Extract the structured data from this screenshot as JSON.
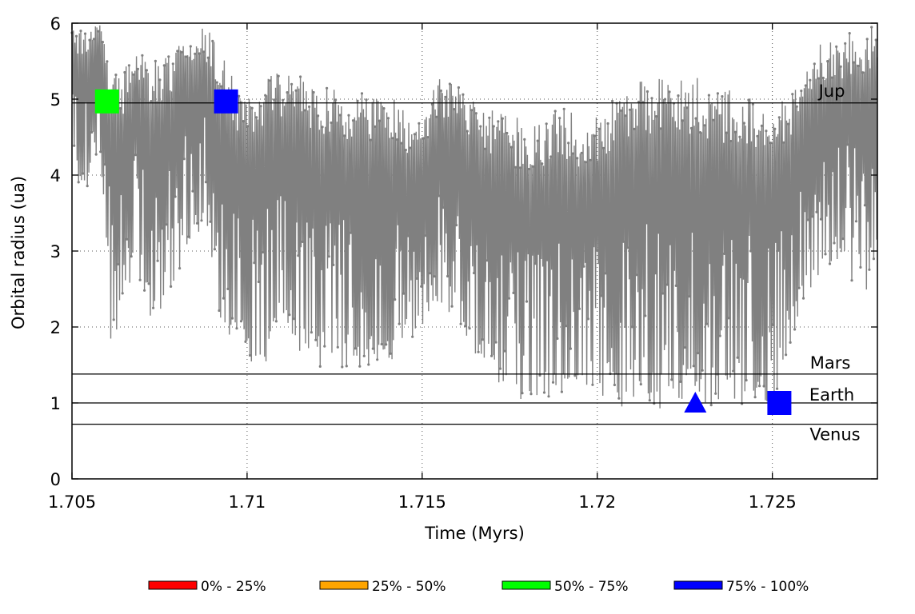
{
  "chart_data": {
    "type": "line",
    "title": "",
    "xlabel": "Time (Myrs)",
    "ylabel": "Orbital radius (ua)",
    "xlim": [
      1.705,
      1.728
    ],
    "ylim": [
      0,
      6
    ],
    "x_ticks": [
      {
        "value": 1.705,
        "label": "1.705"
      },
      {
        "value": 1.71,
        "label": "1.71"
      },
      {
        "value": 1.715,
        "label": "1.715"
      },
      {
        "value": 1.72,
        "label": "1.72"
      },
      {
        "value": 1.725,
        "label": "1.725"
      }
    ],
    "y_ticks": [
      {
        "value": 0,
        "label": "0"
      },
      {
        "value": 1,
        "label": "1"
      },
      {
        "value": 2,
        "label": "2"
      },
      {
        "value": 3,
        "label": "3"
      },
      {
        "value": 4,
        "label": "4"
      },
      {
        "value": 5,
        "label": "5"
      },
      {
        "value": 6,
        "label": "6"
      }
    ],
    "grid": true,
    "line_color": "#808080",
    "reference_lines": [
      {
        "label": "Jup",
        "y": 4.95
      },
      {
        "label": "Mars",
        "y": 1.38
      },
      {
        "label": "Earth",
        "y": 1.0
      },
      {
        "label": "Venus",
        "y": 0.72
      }
    ],
    "envelope": [
      {
        "t": 1.705,
        "top": 5.9,
        "bottom": 4.4
      },
      {
        "t": 1.7053,
        "top": 6.0,
        "bottom": 3.6
      },
      {
        "t": 1.7058,
        "top": 6.0,
        "bottom": 4.3
      },
      {
        "t": 1.7061,
        "top": 5.4,
        "bottom": 1.7
      },
      {
        "t": 1.7064,
        "top": 5.3,
        "bottom": 2.1
      },
      {
        "t": 1.7068,
        "top": 5.7,
        "bottom": 2.8
      },
      {
        "t": 1.7073,
        "top": 5.5,
        "bottom": 2.0
      },
      {
        "t": 1.7078,
        "top": 5.6,
        "bottom": 2.3
      },
      {
        "t": 1.7083,
        "top": 5.9,
        "bottom": 3.1
      },
      {
        "t": 1.7088,
        "top": 6.0,
        "bottom": 3.3
      },
      {
        "t": 1.7093,
        "top": 5.6,
        "bottom": 1.7
      },
      {
        "t": 1.7098,
        "top": 5.1,
        "bottom": 1.9
      },
      {
        "t": 1.7103,
        "top": 5.2,
        "bottom": 1.1
      },
      {
        "t": 1.7108,
        "top": 5.4,
        "bottom": 2.0
      },
      {
        "t": 1.7115,
        "top": 5.3,
        "bottom": 1.6
      },
      {
        "t": 1.7123,
        "top": 5.2,
        "bottom": 1.4
      },
      {
        "t": 1.713,
        "top": 5.1,
        "bottom": 1.5
      },
      {
        "t": 1.714,
        "top": 5.1,
        "bottom": 1.4
      },
      {
        "t": 1.7148,
        "top": 4.7,
        "bottom": 1.9
      },
      {
        "t": 1.7155,
        "top": 5.3,
        "bottom": 2.3
      },
      {
        "t": 1.716,
        "top": 5.3,
        "bottom": 2.1
      },
      {
        "t": 1.7168,
        "top": 4.9,
        "bottom": 1.3
      },
      {
        "t": 1.7175,
        "top": 4.8,
        "bottom": 1.0
      },
      {
        "t": 1.7183,
        "top": 4.7,
        "bottom": 1.1
      },
      {
        "t": 1.719,
        "top": 4.9,
        "bottom": 1.0
      },
      {
        "t": 1.7198,
        "top": 4.7,
        "bottom": 1.1
      },
      {
        "t": 1.7205,
        "top": 5.1,
        "bottom": 0.9
      },
      {
        "t": 1.7213,
        "top": 5.3,
        "bottom": 1.0
      },
      {
        "t": 1.722,
        "top": 5.3,
        "bottom": 0.85
      },
      {
        "t": 1.7228,
        "top": 5.3,
        "bottom": 1.0
      },
      {
        "t": 1.7235,
        "top": 5.2,
        "bottom": 0.95
      },
      {
        "t": 1.7243,
        "top": 5.1,
        "bottom": 1.0
      },
      {
        "t": 1.725,
        "top": 5.0,
        "bottom": 0.95
      },
      {
        "t": 1.7256,
        "top": 5.1,
        "bottom": 1.9
      },
      {
        "t": 1.7262,
        "top": 5.7,
        "bottom": 2.6
      },
      {
        "t": 1.727,
        "top": 5.8,
        "bottom": 2.8
      },
      {
        "t": 1.7276,
        "top": 6.0,
        "bottom": 2.3
      },
      {
        "t": 1.728,
        "top": 6.0,
        "bottom": 3.0
      }
    ],
    "markers": [
      {
        "shape": "square",
        "color": "#00ff00",
        "x": 1.706,
        "y": 4.97
      },
      {
        "shape": "square",
        "color": "#0000ff",
        "x": 1.7094,
        "y": 4.97
      },
      {
        "shape": "triangle",
        "color": "#0000ff",
        "x": 1.7228,
        "y": 1.0
      },
      {
        "shape": "square",
        "color": "#0000ff",
        "x": 1.7252,
        "y": 1.0
      }
    ],
    "legend": [
      {
        "label": "0% - 25%",
        "color": "#ff0000"
      },
      {
        "label": "25% - 50%",
        "color": "#ffa500"
      },
      {
        "label": "50% - 75%",
        "color": "#00ff00"
      },
      {
        "label": "75% - 100%",
        "color": "#0000ff"
      }
    ],
    "legend_position": "bottom"
  }
}
